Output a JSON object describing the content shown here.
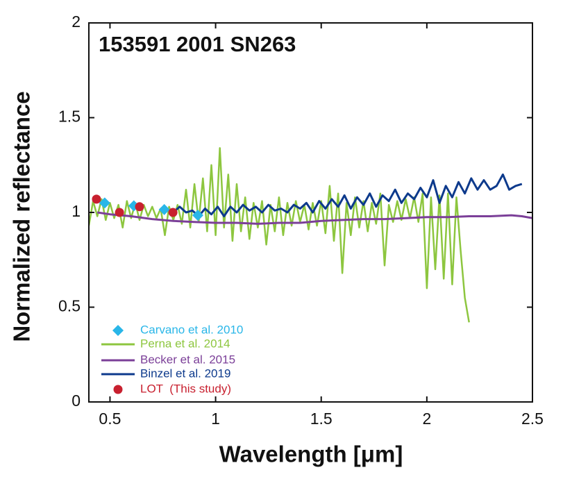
{
  "chart_data": {
    "type": "line",
    "title": "153591 2001 SN263",
    "title_color": "#c8202f",
    "xlabel": "Wavelength [μm]",
    "ylabel": "Normalized reflectance",
    "xlim": [
      0.4,
      2.5
    ],
    "ylim": [
      0,
      2
    ],
    "xticks": [
      0.5,
      1,
      1.5,
      2,
      2.5
    ],
    "yticks": [
      0,
      0.5,
      1,
      1.5,
      2
    ],
    "legend": "lower left",
    "series": [
      {
        "name": "Carvano et al. 2010",
        "color": "#29b6e8",
        "style": "markers",
        "marker": "diamond",
        "x": [
          0.475,
          0.613,
          0.757,
          0.916
        ],
        "values": [
          1.05,
          1.035,
          1.015,
          0.985
        ]
      },
      {
        "name": "Perna et al. 2014",
        "color": "#8dc63f",
        "style": "line",
        "x": [
          0.4,
          0.42,
          0.44,
          0.46,
          0.48,
          0.5,
          0.52,
          0.54,
          0.56,
          0.58,
          0.6,
          0.62,
          0.64,
          0.66,
          0.68,
          0.7,
          0.72,
          0.74,
          0.76,
          0.78,
          0.8,
          0.82,
          0.84,
          0.86,
          0.88,
          0.9,
          0.92,
          0.94,
          0.96,
          0.98,
          1.0,
          1.02,
          1.04,
          1.06,
          1.08,
          1.1,
          1.12,
          1.14,
          1.16,
          1.18,
          1.2,
          1.22,
          1.24,
          1.26,
          1.28,
          1.3,
          1.32,
          1.34,
          1.36,
          1.38,
          1.4,
          1.42,
          1.44,
          1.46,
          1.48,
          1.5,
          1.52,
          1.54,
          1.56,
          1.58,
          1.6,
          1.62,
          1.64,
          1.66,
          1.68,
          1.7,
          1.72,
          1.74,
          1.76,
          1.78,
          1.8,
          1.82,
          1.84,
          1.86,
          1.88,
          1.9,
          1.92,
          1.94,
          1.96,
          1.98,
          2.0,
          2.02,
          2.04,
          2.06,
          2.08,
          2.1,
          2.12,
          2.14,
          2.16,
          2.18,
          2.2
        ],
        "values": [
          0.93,
          1.06,
          0.98,
          1.07,
          0.96,
          1.05,
          0.97,
          1.04,
          0.92,
          1.06,
          0.97,
          1.05,
          0.96,
          1.04,
          0.98,
          1.03,
          0.97,
          1.02,
          0.88,
          1.03,
          0.96,
          1.04,
          0.94,
          1.12,
          0.92,
          1.15,
          0.95,
          1.18,
          0.9,
          1.25,
          0.88,
          1.34,
          0.92,
          1.2,
          0.85,
          1.15,
          0.9,
          1.08,
          0.86,
          1.05,
          0.92,
          1.06,
          0.83,
          1.04,
          0.9,
          1.08,
          0.88,
          1.05,
          0.93,
          1.06,
          0.95,
          1.04,
          0.91,
          1.05,
          0.93,
          1.06,
          0.89,
          1.14,
          0.85,
          1.1,
          0.68,
          1.05,
          0.88,
          1.08,
          0.92,
          1.06,
          0.9,
          1.05,
          0.94,
          1.1,
          0.72,
          1.04,
          0.95,
          1.06,
          0.96,
          1.07,
          0.97,
          1.08,
          0.95,
          1.1,
          0.6,
          1.08,
          0.7,
          1.09,
          0.65,
          1.1,
          0.62,
          1.08,
          0.8,
          0.55,
          0.42
        ]
      },
      {
        "name": "Becker et al. 2015",
        "color": "#7b3f98",
        "style": "line",
        "x": [
          0.44,
          0.5,
          0.6,
          0.7,
          0.8,
          0.9,
          1.0,
          1.1,
          1.2,
          1.3,
          1.4,
          1.5,
          1.6,
          1.7,
          1.8,
          1.9,
          2.0,
          2.1,
          2.2,
          2.3,
          2.4,
          2.45,
          2.5
        ],
        "values": [
          1.0,
          0.99,
          0.98,
          0.965,
          0.955,
          0.95,
          0.945,
          0.945,
          0.94,
          0.945,
          0.945,
          0.955,
          0.96,
          0.965,
          0.965,
          0.97,
          0.975,
          0.975,
          0.98,
          0.98,
          0.985,
          0.98,
          0.97
        ]
      },
      {
        "name": "Binzel et al. 2019",
        "color": "#0d3a8c",
        "style": "line",
        "x": [
          0.8,
          0.83,
          0.86,
          0.89,
          0.92,
          0.95,
          0.98,
          1.01,
          1.04,
          1.07,
          1.1,
          1.13,
          1.16,
          1.19,
          1.22,
          1.25,
          1.28,
          1.31,
          1.34,
          1.37,
          1.4,
          1.43,
          1.46,
          1.49,
          1.52,
          1.55,
          1.58,
          1.61,
          1.64,
          1.67,
          1.7,
          1.73,
          1.76,
          1.79,
          1.82,
          1.85,
          1.88,
          1.91,
          1.94,
          1.97,
          2.0,
          2.03,
          2.06,
          2.09,
          2.12,
          2.15,
          2.18,
          2.21,
          2.24,
          2.27,
          2.3,
          2.33,
          2.36,
          2.39,
          2.42,
          2.45
        ],
        "values": [
          1.0,
          1.03,
          1.0,
          1.01,
          0.98,
          1.02,
          0.99,
          1.03,
          0.98,
          1.03,
          1.0,
          1.04,
          1.01,
          1.03,
          1.0,
          1.04,
          1.01,
          1.02,
          1.0,
          1.04,
          1.02,
          1.05,
          1.0,
          1.06,
          1.02,
          1.07,
          1.03,
          1.09,
          1.02,
          1.08,
          1.04,
          1.1,
          1.03,
          1.09,
          1.06,
          1.12,
          1.05,
          1.1,
          1.07,
          1.13,
          1.08,
          1.17,
          1.05,
          1.14,
          1.08,
          1.16,
          1.1,
          1.18,
          1.12,
          1.17,
          1.12,
          1.14,
          1.2,
          1.12,
          1.14,
          1.15
        ]
      },
      {
        "name": "LOT  (This study)",
        "color": "#c8202f",
        "style": "markers",
        "marker": "circle",
        "x": [
          0.436,
          0.545,
          0.64,
          0.798
        ],
        "values": [
          1.07,
          1.0,
          1.03,
          1.0
        ]
      }
    ]
  }
}
